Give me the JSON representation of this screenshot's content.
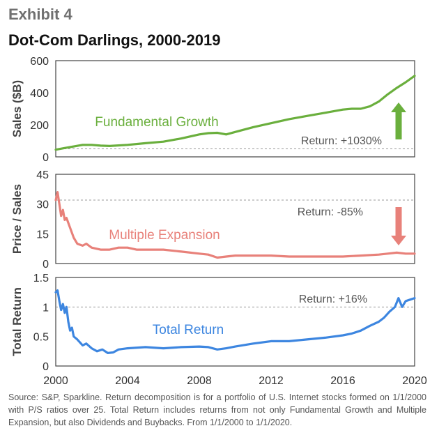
{
  "header": {
    "exhibit": "Exhibit 4",
    "title": "Dot-Com Darlings, 2000-2019"
  },
  "source": "Source: S&P, Sparkline. Return decomposition is for a portfolio of U.S. Internet stocks formed on 1/1/2000 with P/S ratios over 25. Total Return includes returns from not only Fundamental Growth and Multiple Expansion, but also Dividends and Buybacks. From 1/1/2000 to 1/1/2020.",
  "chart_data": [
    {
      "type": "line",
      "ylabel": "Sales ($B)",
      "ylim": [
        0,
        600
      ],
      "yticks": [
        "0",
        "200",
        "400",
        "600"
      ],
      "xlim": [
        2000,
        2020
      ],
      "xticks": [
        "2000",
        "2004",
        "2008",
        "2012",
        "2016",
        "2020"
      ],
      "series": [
        {
          "name": "Fundamental Growth",
          "color": "#6aaf3d",
          "x": [
            2000,
            2000.5,
            2001,
            2001.5,
            2002,
            2002.5,
            2003,
            2004,
            2005,
            2006,
            2007,
            2008,
            2008.5,
            2009,
            2009.5,
            2010,
            2011,
            2012,
            2013,
            2014,
            2015,
            2016,
            2016.5,
            2017,
            2017.5,
            2018,
            2018.5,
            2019,
            2019.5,
            2020
          ],
          "y": [
            45,
            55,
            65,
            75,
            75,
            70,
            68,
            75,
            85,
            95,
            115,
            140,
            148,
            150,
            140,
            155,
            185,
            210,
            235,
            255,
            275,
            295,
            300,
            300,
            315,
            345,
            390,
            430,
            465,
            505
          ]
        }
      ],
      "reference_line": 50,
      "annotation": "Return: +1030%",
      "arrow": "up",
      "arrow_color": "#6aaf3d"
    },
    {
      "type": "line",
      "ylabel": "Price / Sales",
      "ylim": [
        0,
        45
      ],
      "yticks": [
        "0",
        "15",
        "30",
        "45"
      ],
      "xlim": [
        2000,
        2020
      ],
      "xticks": [
        "2000",
        "2004",
        "2008",
        "2012",
        "2016",
        "2020"
      ],
      "series": [
        {
          "name": "Multiple Expansion",
          "color": "#e8817a",
          "x": [
            2000,
            2000.1,
            2000.2,
            2000.3,
            2000.4,
            2000.5,
            2000.6,
            2000.8,
            2001,
            2001.2,
            2001.5,
            2001.7,
            2002,
            2002.5,
            2003,
            2003.5,
            2004,
            2004.5,
            2005,
            2006,
            2007,
            2008,
            2008.5,
            2009,
            2009.5,
            2010,
            2011,
            2012,
            2013,
            2014,
            2015,
            2016,
            2017,
            2018,
            2018.5,
            2019,
            2019.5,
            2020
          ],
          "y": [
            32,
            36,
            30,
            24,
            27,
            22,
            23,
            18,
            13,
            10,
            9,
            10,
            8,
            7,
            7,
            8,
            8,
            7,
            7,
            7,
            6,
            5,
            4.5,
            3,
            3.5,
            4,
            4,
            4,
            3.5,
            3.5,
            3.5,
            3.5,
            4,
            4.5,
            5,
            5.5,
            5,
            5
          ]
        }
      ],
      "reference_line": 32,
      "annotation": "Return: -85%",
      "arrow": "down",
      "arrow_color": "#e8817a"
    },
    {
      "type": "line",
      "ylabel": "Total Return",
      "ylim": [
        0,
        1.5
      ],
      "yticks": [
        "0",
        "0.5",
        "1",
        "1.5"
      ],
      "xlim": [
        2000,
        2020
      ],
      "xticks": [
        "2000",
        "2004",
        "2008",
        "2012",
        "2016",
        "2020"
      ],
      "series": [
        {
          "name": "Total Return",
          "color": "#3d86e0",
          "x": [
            2000,
            2000.1,
            2000.2,
            2000.3,
            2000.4,
            2000.5,
            2000.6,
            2000.7,
            2000.8,
            2000.9,
            2001,
            2001.2,
            2001.5,
            2001.7,
            2002,
            2002.3,
            2002.6,
            2002.9,
            2003.2,
            2003.5,
            2004,
            2005,
            2006,
            2007,
            2008,
            2008.5,
            2009,
            2009.5,
            2010,
            2011,
            2012,
            2013,
            2014,
            2015,
            2016,
            2016.5,
            2017,
            2017.5,
            2018,
            2018.3,
            2018.6,
            2018.9,
            2019.1,
            2019.3,
            2019.5,
            2019.7,
            2020
          ],
          "y": [
            1.25,
            1.28,
            1.1,
            0.95,
            1.05,
            0.9,
            1.0,
            0.75,
            0.6,
            0.65,
            0.5,
            0.45,
            0.35,
            0.38,
            0.3,
            0.25,
            0.28,
            0.22,
            0.23,
            0.28,
            0.3,
            0.32,
            0.3,
            0.32,
            0.33,
            0.32,
            0.28,
            0.3,
            0.33,
            0.38,
            0.42,
            0.42,
            0.45,
            0.48,
            0.52,
            0.55,
            0.6,
            0.68,
            0.75,
            0.82,
            0.92,
            1.0,
            1.15,
            1.0,
            1.1,
            1.12,
            1.15
          ]
        }
      ],
      "reference_line": 1,
      "annotation": "Return: +16%"
    }
  ]
}
